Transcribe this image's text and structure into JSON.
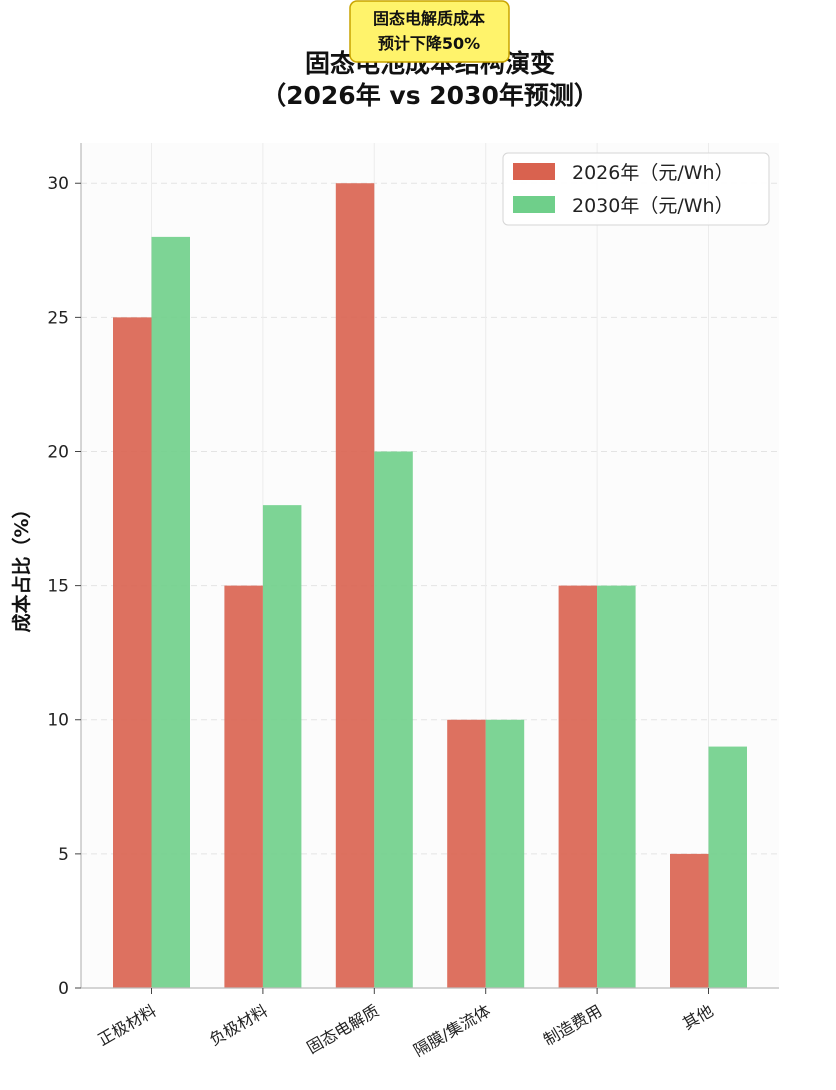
{
  "chart_data": {
    "type": "bar",
    "title": "固态电池成本结构演变",
    "subtitle": "（2026年 vs 2030年预测）",
    "xlabel": "",
    "ylabel": "成本占比（%）",
    "categories": [
      "正极材料",
      "负极材料",
      "固态电解质",
      "隔膜/集流体",
      "制造费用",
      "其他"
    ],
    "series": [
      {
        "name": "2026年（元/Wh）",
        "values": [
          25,
          15,
          30,
          10,
          15,
          5
        ],
        "color": "#d9624f"
      },
      {
        "name": "2030年（元/Wh）",
        "values": [
          28,
          18,
          20,
          10,
          15,
          9
        ],
        "color": "#6fcf8a"
      }
    ],
    "ylim": [
      0,
      31.5
    ],
    "yticks": [
      0,
      5,
      10,
      15,
      20,
      25,
      30
    ],
    "grid": true,
    "legend_position": "top-right",
    "annotation": {
      "line1": "固态电解质成本",
      "line2": "预计下降50%",
      "background": "#fff36b",
      "border": "#c9a300"
    }
  }
}
